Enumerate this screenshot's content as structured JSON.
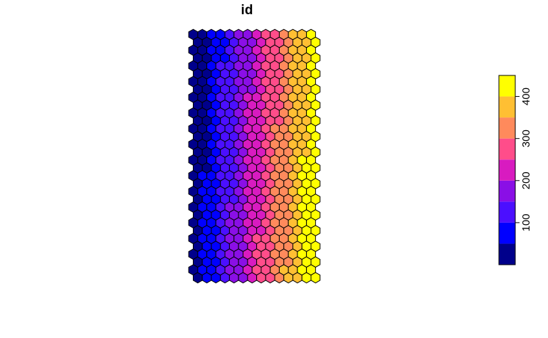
{
  "chart_data": {
    "type": "heatmap",
    "title": "id",
    "grid_shape": "hexagonal",
    "columns": 14,
    "rows": 32,
    "value_range": [
      1,
      448
    ],
    "value_order": "column-major, increasing left to right",
    "legend": {
      "placement": "right",
      "breaks": [
        0,
        50,
        100,
        150,
        200,
        250,
        300,
        350,
        400,
        450
      ],
      "colors": [
        "#00008B",
        "#0000FF",
        "#4B0FFF",
        "#8A0FE6",
        "#D81BC0",
        "#FF4D8A",
        "#FF8A5C",
        "#FFBF33",
        "#FFFF00"
      ],
      "tick_values": [
        100,
        200,
        300,
        400
      ],
      "tick_labels": [
        "100",
        "200",
        "300",
        "400"
      ]
    }
  }
}
